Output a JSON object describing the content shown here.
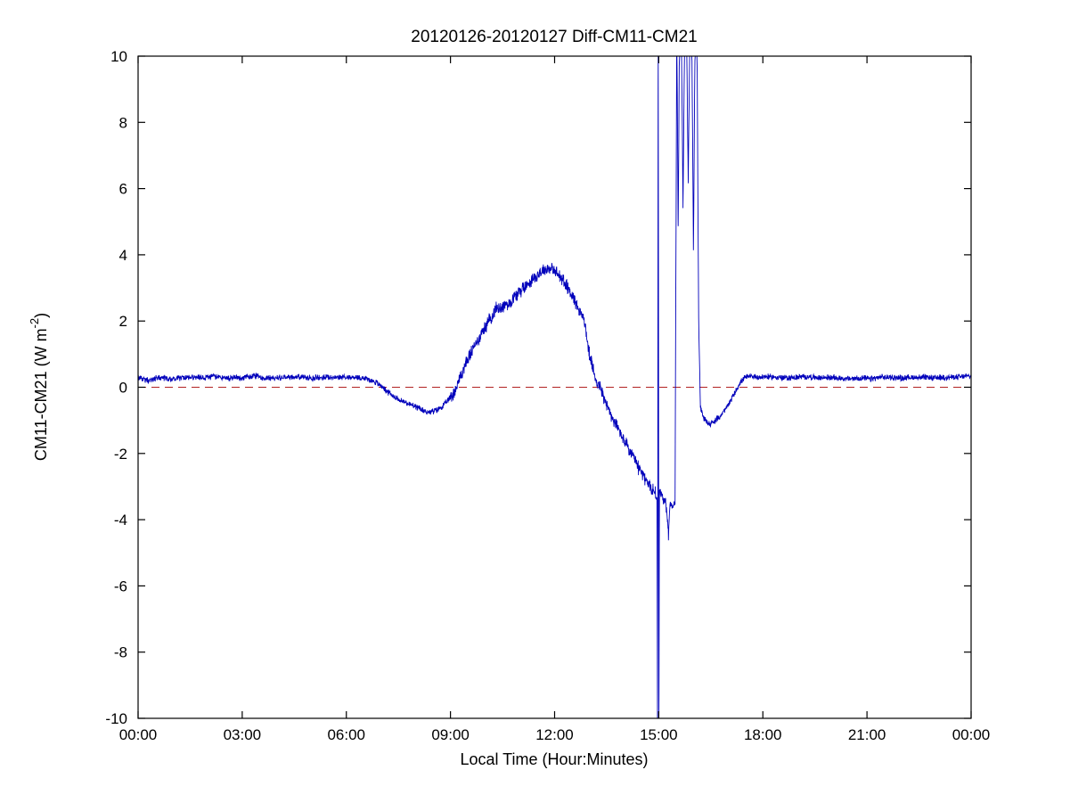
{
  "chart_data": {
    "type": "line",
    "title": "20120126-20120127 Diff-CM11-CM21",
    "xlabel": "Local Time (Hour:Minutes)",
    "ylabel": {
      "pre": "CM11-CM21 (W m",
      "sup": "-2",
      "post": ")"
    },
    "xlim": [
      0,
      24
    ],
    "ylim": [
      -10,
      10
    ],
    "grid": false,
    "legend": "none",
    "x_ticks": [
      {
        "t": 0,
        "label": "00:00"
      },
      {
        "t": 3,
        "label": "03:00"
      },
      {
        "t": 6,
        "label": "06:00"
      },
      {
        "t": 9,
        "label": "09:00"
      },
      {
        "t": 12,
        "label": "12:00"
      },
      {
        "t": 15,
        "label": "15:00"
      },
      {
        "t": 18,
        "label": "18:00"
      },
      {
        "t": 21,
        "label": "21:00"
      },
      {
        "t": 24,
        "label": "00:00"
      }
    ],
    "y_ticks": [
      -10,
      -8,
      -6,
      -4,
      -2,
      0,
      2,
      4,
      6,
      8,
      10
    ],
    "zero_line": {
      "value": 0,
      "style": "dashed",
      "color": "#b22222"
    },
    "series": [
      {
        "name": "CM11-CM21 difference",
        "color": "#0000bb",
        "anchors": [
          [
            0,
            0.3
          ],
          [
            0.3,
            0.2
          ],
          [
            0.6,
            0.3
          ],
          [
            1,
            0.25
          ],
          [
            1.4,
            0.3
          ],
          [
            1.8,
            0.28
          ],
          [
            2.2,
            0.32
          ],
          [
            2.6,
            0.28
          ],
          [
            3,
            0.3
          ],
          [
            3.4,
            0.33
          ],
          [
            3.8,
            0.28
          ],
          [
            4.2,
            0.3
          ],
          [
            4.6,
            0.32
          ],
          [
            5,
            0.28
          ],
          [
            5.4,
            0.3
          ],
          [
            5.8,
            0.3
          ],
          [
            6.2,
            0.3
          ],
          [
            6.5,
            0.28
          ],
          [
            6.8,
            0.18
          ],
          [
            7.0,
            0.05
          ],
          [
            7.2,
            -0.15
          ],
          [
            7.4,
            -0.3
          ],
          [
            7.6,
            -0.42
          ],
          [
            7.8,
            -0.5
          ],
          [
            8.0,
            -0.6
          ],
          [
            8.2,
            -0.7
          ],
          [
            8.4,
            -0.75
          ],
          [
            8.6,
            -0.7
          ],
          [
            8.8,
            -0.55
          ],
          [
            9.0,
            -0.3
          ],
          [
            9.15,
            -0.05
          ],
          [
            9.3,
            0.35
          ],
          [
            9.45,
            0.75
          ],
          [
            9.6,
            1.05
          ],
          [
            9.8,
            1.45
          ],
          [
            10.0,
            1.8
          ],
          [
            10.15,
            2.1
          ],
          [
            10.3,
            2.35
          ],
          [
            10.5,
            2.45
          ],
          [
            10.7,
            2.55
          ],
          [
            10.9,
            2.8
          ],
          [
            11.1,
            3.0
          ],
          [
            11.3,
            3.2
          ],
          [
            11.5,
            3.4
          ],
          [
            11.7,
            3.55
          ],
          [
            11.85,
            3.6
          ],
          [
            12.0,
            3.5
          ],
          [
            12.15,
            3.35
          ],
          [
            12.3,
            3.15
          ],
          [
            12.5,
            2.8
          ],
          [
            12.7,
            2.35
          ],
          [
            12.85,
            2.05
          ],
          [
            13.0,
            1.0
          ],
          [
            13.1,
            0.55
          ],
          [
            13.2,
            0.25
          ],
          [
            13.35,
            -0.1
          ],
          [
            13.5,
            -0.55
          ],
          [
            13.65,
            -0.9
          ],
          [
            13.8,
            -1.2
          ],
          [
            14.0,
            -1.6
          ],
          [
            14.2,
            -2.0
          ],
          [
            14.4,
            -2.4
          ],
          [
            14.6,
            -2.75
          ],
          [
            14.75,
            -3.0
          ],
          [
            14.9,
            -3.2
          ],
          [
            14.95,
            -3.3
          ],
          [
            14.965,
            -11
          ],
          [
            14.985,
            11
          ],
          [
            15.005,
            -11
          ],
          [
            15.02,
            -3.2
          ],
          [
            15.1,
            -3.3
          ],
          [
            15.2,
            -3.45
          ],
          [
            15.28,
            -4.4
          ],
          [
            15.33,
            -3.5
          ],
          [
            15.4,
            -3.6
          ],
          [
            15.47,
            -3.5
          ],
          [
            15.52,
            11
          ],
          [
            15.56,
            4.8
          ],
          [
            15.6,
            11
          ],
          [
            15.65,
            11
          ],
          [
            15.7,
            5.5
          ],
          [
            15.75,
            11
          ],
          [
            15.8,
            11
          ],
          [
            15.85,
            6.2
          ],
          [
            15.9,
            11
          ],
          [
            15.95,
            11
          ],
          [
            16.0,
            4.2
          ],
          [
            16.05,
            11
          ],
          [
            16.1,
            11
          ],
          [
            16.15,
            2.0
          ],
          [
            16.2,
            -0.6
          ],
          [
            16.3,
            -0.95
          ],
          [
            16.45,
            -1.1
          ],
          [
            16.6,
            -1.05
          ],
          [
            16.75,
            -0.9
          ],
          [
            16.9,
            -0.7
          ],
          [
            17.05,
            -0.45
          ],
          [
            17.2,
            -0.15
          ],
          [
            17.35,
            0.15
          ],
          [
            17.5,
            0.3
          ],
          [
            17.7,
            0.33
          ],
          [
            17.9,
            0.3
          ],
          [
            18.1,
            0.32
          ],
          [
            18.4,
            0.3
          ],
          [
            18.7,
            0.28
          ],
          [
            19,
            0.3
          ],
          [
            19.3,
            0.32
          ],
          [
            19.6,
            0.28
          ],
          [
            19.9,
            0.3
          ],
          [
            20.2,
            0.28
          ],
          [
            20.5,
            0.25
          ],
          [
            20.8,
            0.28
          ],
          [
            21.1,
            0.25
          ],
          [
            21.4,
            0.3
          ],
          [
            21.7,
            0.3
          ],
          [
            22,
            0.28
          ],
          [
            22.3,
            0.3
          ],
          [
            22.6,
            0.3
          ],
          [
            22.9,
            0.28
          ],
          [
            23.2,
            0.3
          ],
          [
            23.5,
            0.3
          ],
          [
            23.8,
            0.32
          ],
          [
            24,
            0.35
          ]
        ]
      }
    ],
    "noise": {
      "night_amp": 0.07,
      "day_amp": 0.16,
      "day_start": 9.0,
      "day_end": 15.3,
      "seed": 42
    }
  }
}
